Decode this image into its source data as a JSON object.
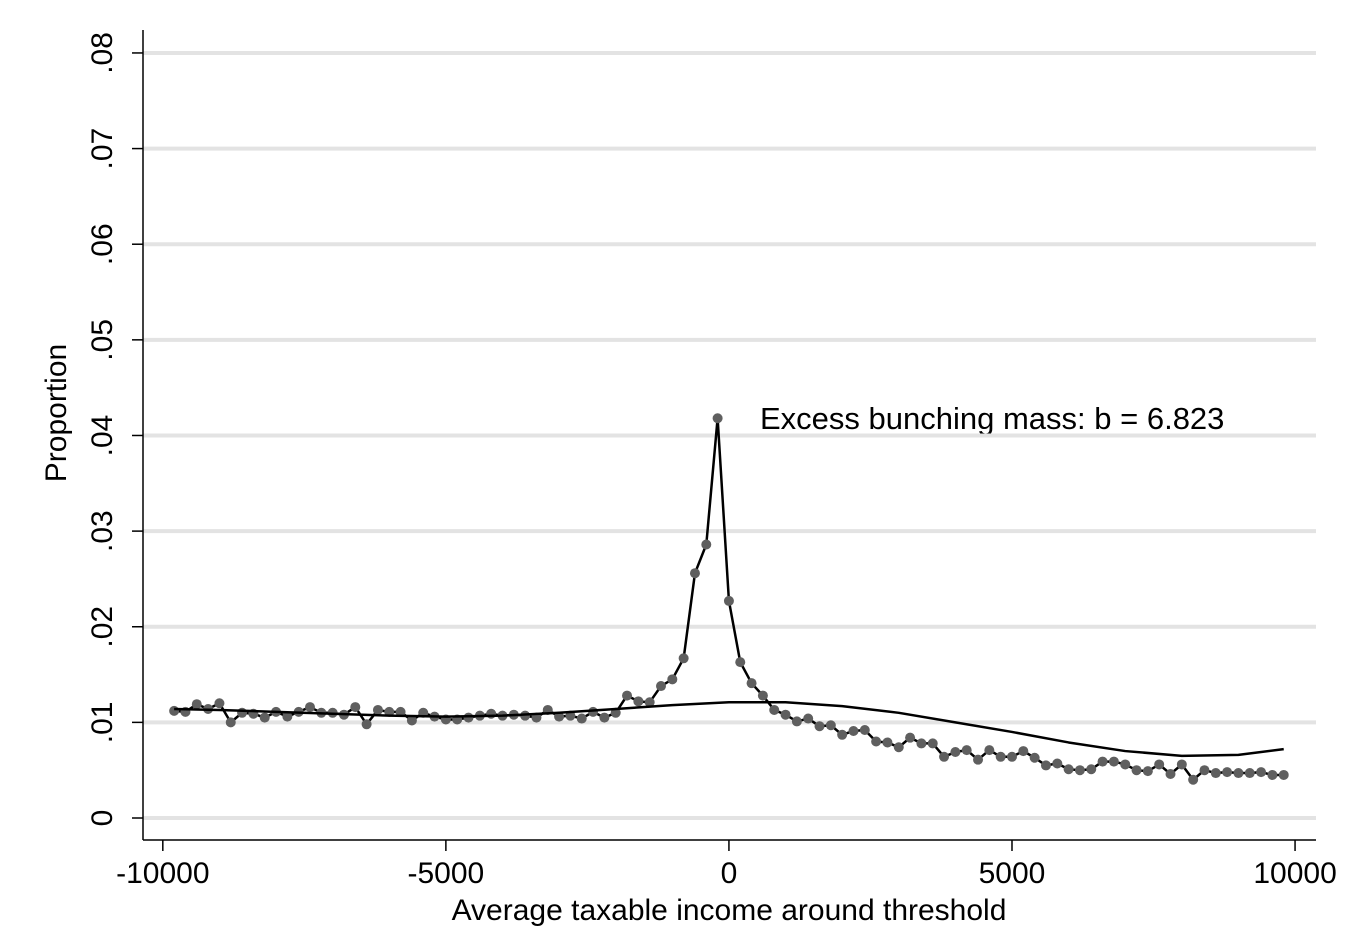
{
  "chart_data": {
    "type": "line",
    "xlabel": "Average taxable income around threshold",
    "ylabel": "Proportion",
    "annotation": "Excess bunching mass: b = 6.823",
    "xlim": [
      -10350,
      10370
    ],
    "ylim": [
      -0.0023,
      0.0824
    ],
    "xticks": [
      -10000,
      -5000,
      0,
      5000,
      10000
    ],
    "yticks": [
      0,
      {
        "value": 0.01,
        "label": ".01"
      },
      {
        "value": 0.02,
        "label": ".02"
      },
      {
        "value": 0.03,
        "label": ".03"
      },
      {
        "value": 0.04,
        "label": ".04"
      },
      {
        "value": 0.05,
        "label": ".05"
      },
      {
        "value": 0.06,
        "label": ".06"
      },
      {
        "value": 0.07,
        "label": ".07"
      },
      {
        "value": 0.08,
        "label": ".08"
      }
    ],
    "grid": true,
    "series": [
      {
        "color": "#000000",
        "marker_color": "#5f5f5f",
        "marker": true,
        "x": [
          -9800,
          -9600,
          -9400,
          -9200,
          -9000,
          -8800,
          -8600,
          -8400,
          -8200,
          -8000,
          -7800,
          -7600,
          -7400,
          -7200,
          -7000,
          -6800,
          -6600,
          -6400,
          -6200,
          -6000,
          -5800,
          -5600,
          -5400,
          -5200,
          -5000,
          -4800,
          -4600,
          -4400,
          -4200,
          -4000,
          -3800,
          -3600,
          -3400,
          -3200,
          -3000,
          -2800,
          -2600,
          -2400,
          -2200,
          -2000,
          -1800,
          -1600,
          -1400,
          -1200,
          -1000,
          -800,
          -600,
          -400,
          -200,
          0,
          200,
          400,
          600,
          800,
          1000,
          1200,
          1400,
          1600,
          1800,
          2000,
          2200,
          2400,
          2600,
          2800,
          3000,
          3200,
          3400,
          3600,
          3800,
          4000,
          4200,
          4400,
          4600,
          4800,
          5000,
          5200,
          5400,
          5600,
          5800,
          6000,
          6200,
          6400,
          6600,
          6800,
          7000,
          7200,
          7400,
          7600,
          7800,
          8000,
          8200,
          8400,
          8600,
          8800,
          9000,
          9200,
          9400,
          9600,
          9800
        ],
        "values": [
          0.0112,
          0.0111,
          0.0119,
          0.0114,
          0.012,
          0.01,
          0.011,
          0.0109,
          0.0105,
          0.0111,
          0.0106,
          0.0111,
          0.0116,
          0.011,
          0.011,
          0.0108,
          0.0116,
          0.0098,
          0.0113,
          0.0111,
          0.0111,
          0.0102,
          0.011,
          0.0106,
          0.0103,
          0.0103,
          0.0105,
          0.0107,
          0.0109,
          0.0107,
          0.0108,
          0.0107,
          0.0105,
          0.0113,
          0.0106,
          0.0107,
          0.0104,
          0.0111,
          0.0105,
          0.011,
          0.0128,
          0.0122,
          0.0121,
          0.0138,
          0.0145,
          0.0167,
          0.0256,
          0.0286,
          0.0418,
          0.0227,
          0.0163,
          0.0141,
          0.0128,
          0.0113,
          0.0108,
          0.0101,
          0.0104,
          0.0096,
          0.0097,
          0.0087,
          0.0091,
          0.0092,
          0.008,
          0.0079,
          0.0074,
          0.0084,
          0.0078,
          0.0078,
          0.0064,
          0.0069,
          0.0071,
          0.0061,
          0.0071,
          0.0064,
          0.0064,
          0.007,
          0.0063,
          0.0055,
          0.0057,
          0.0051,
          0.005,
          0.0051,
          0.0059,
          0.0059,
          0.0056,
          0.005,
          0.0049,
          0.0056,
          0.0046,
          0.0056,
          0.004,
          0.005,
          0.0047,
          0.0048,
          0.0047,
          0.0047,
          0.0048,
          0.0045,
          0.0045
        ]
      },
      {
        "color": "#000000",
        "marker": false,
        "x": [
          -9800,
          -9000,
          -8000,
          -7000,
          -6000,
          -5000,
          -4000,
          -3000,
          -2000,
          -1000,
          0,
          1000,
          2000,
          3000,
          4000,
          5000,
          6000,
          7000,
          8000,
          9000,
          9800
        ],
        "values": [
          0.0114,
          0.0113,
          0.0111,
          0.0109,
          0.0107,
          0.0106,
          0.0107,
          0.011,
          0.0114,
          0.0118,
          0.0121,
          0.0121,
          0.0117,
          0.011,
          0.01,
          0.009,
          0.0079,
          0.007,
          0.0065,
          0.0066,
          0.0072
        ]
      }
    ]
  }
}
